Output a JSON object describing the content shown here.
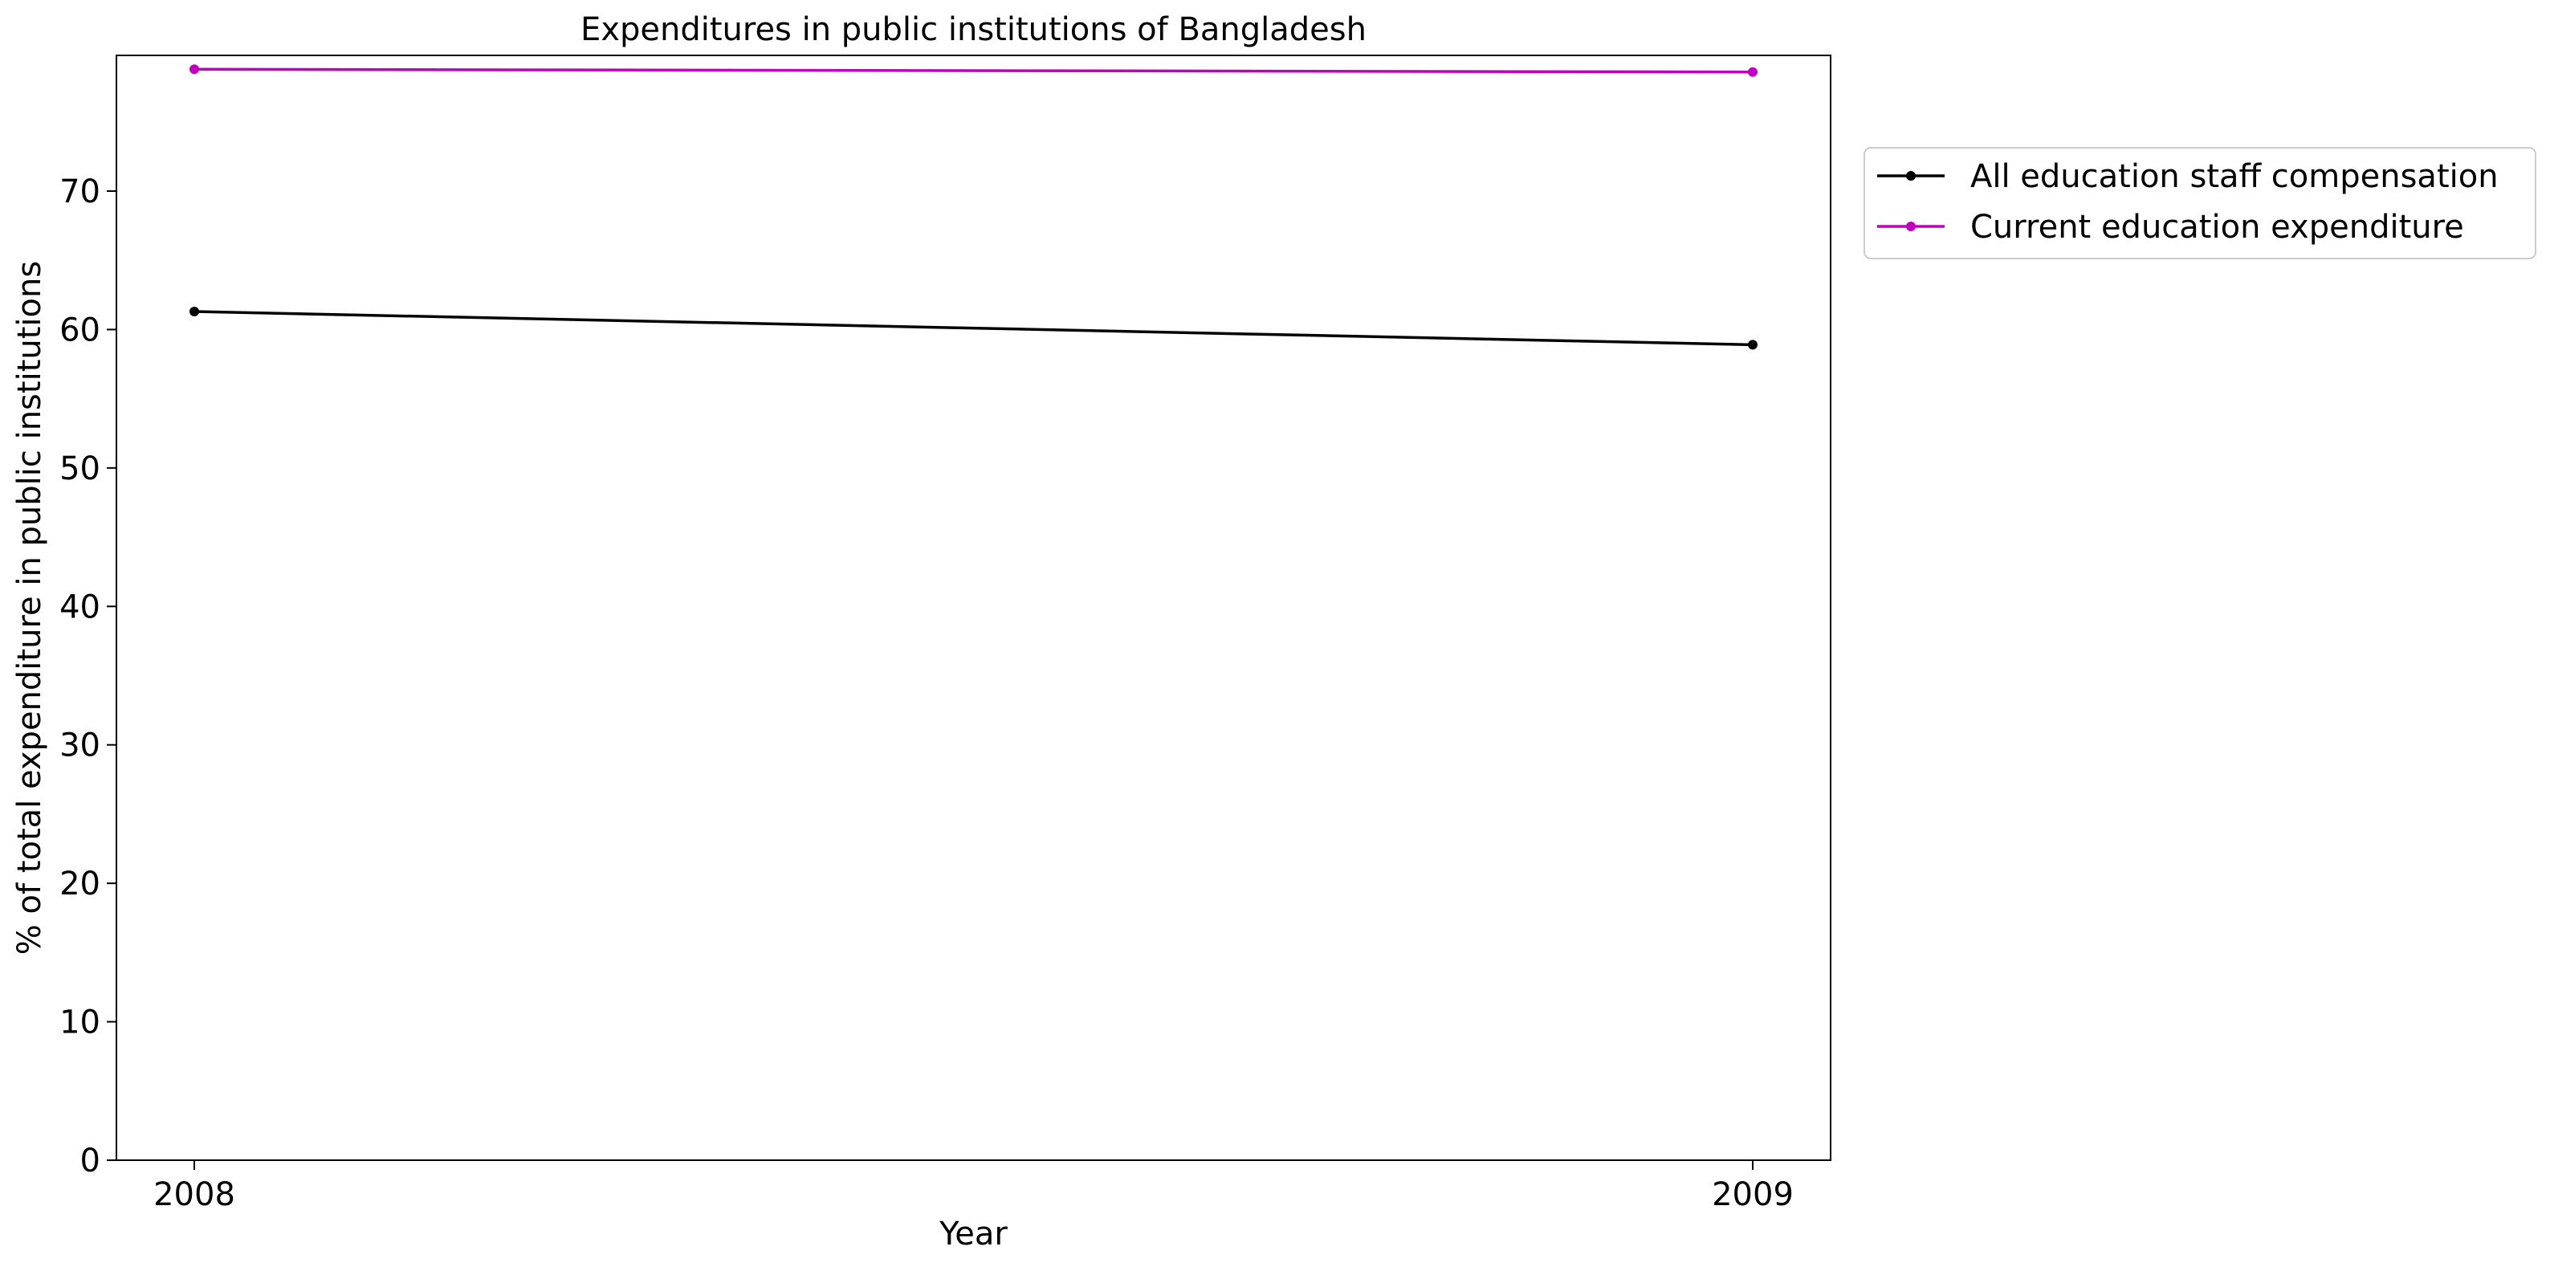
{
  "chart_data": {
    "type": "line",
    "title": "Expenditures in public institutions of Bangladesh",
    "xlabel": "Year",
    "ylabel": "% of total expenditure in public institutions",
    "x": [
      2008,
      2009
    ],
    "x_tick_labels": [
      "2008",
      "2009"
    ],
    "ylim": [
      0,
      79.8
    ],
    "y_ticks": [
      0,
      10,
      20,
      30,
      40,
      50,
      60,
      70
    ],
    "y_tick_labels": [
      "0",
      "10",
      "20",
      "30",
      "40",
      "50",
      "60",
      "70"
    ],
    "grid": false,
    "legend_position": "outside-right-top",
    "series": [
      {
        "name": "All education staff compensation",
        "values": [
          61.3,
          58.9
        ],
        "color": "#000000",
        "marker": "dot"
      },
      {
        "name": "Current education expenditure",
        "values": [
          78.8,
          78.6
        ],
        "color": "#bf00bf",
        "marker": "dot"
      }
    ]
  }
}
